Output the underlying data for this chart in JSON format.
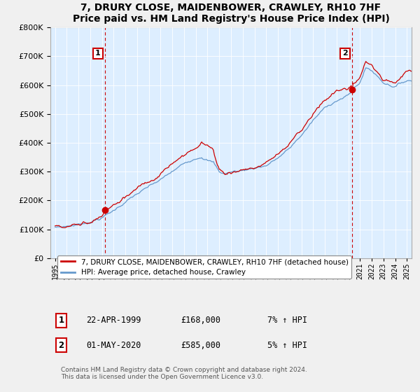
{
  "title": "7, DRURY CLOSE, MAIDENBOWER, CRAWLEY, RH10 7HF",
  "subtitle": "Price paid vs. HM Land Registry's House Price Index (HPI)",
  "ylim": [
    0,
    800000
  ],
  "yticks": [
    0,
    100000,
    200000,
    300000,
    400000,
    500000,
    600000,
    700000,
    800000
  ],
  "sale1_date": "22-APR-1999",
  "sale1_price": 168000,
  "sale1_label": "7% ↑ HPI",
  "sale1_year": 1999.25,
  "sale2_date": "01-MAY-2020",
  "sale2_price": 585000,
  "sale2_label": "5% ↑ HPI",
  "sale2_year": 2020.33,
  "legend_line1": "7, DRURY CLOSE, MAIDENBOWER, CRAWLEY, RH10 7HF (detached house)",
  "legend_line2": "HPI: Average price, detached house, Crawley",
  "footnote": "Contains HM Land Registry data © Crown copyright and database right 2024.\nThis data is licensed under the Open Government Licence v3.0.",
  "red_color": "#cc0000",
  "blue_color": "#6699cc",
  "bg_plot_color": "#ddeeff",
  "background_color": "#f0f0f0",
  "grid_color": "#ffffff",
  "annotation1_num": "1",
  "annotation2_num": "2"
}
